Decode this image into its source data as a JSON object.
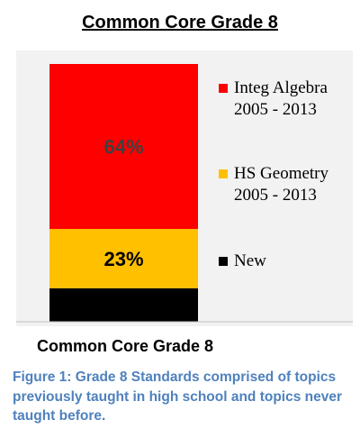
{
  "title": "Common Core Grade 8",
  "caption": "Figure 1: Grade 8 Standards comprised of topics previously taught in high school and topics never taught before.",
  "chart_data": {
    "type": "bar",
    "stacked": true,
    "categories": [
      "Common Core Grade 8"
    ],
    "series": [
      {
        "name": "New",
        "values": [
          13
        ],
        "color": "#000000",
        "label": ""
      },
      {
        "name": "HS Geometry 2005 - 2013",
        "legend_lines": [
          "HS Geometry",
          "2005 - 2013"
        ],
        "values": [
          23
        ],
        "color": "#ffc000",
        "label": "23%",
        "label_color": "#000000"
      },
      {
        "name": "Integ Algebra 2005 - 2013",
        "legend_lines": [
          "Integ Algebra",
          "2005 - 2013"
        ],
        "values": [
          64
        ],
        "color": "#ff0000",
        "label": "64%",
        "label_color": "#404040"
      }
    ],
    "ylim": [
      0,
      100
    ],
    "unit": "%",
    "legend": "right",
    "grid": false
  }
}
